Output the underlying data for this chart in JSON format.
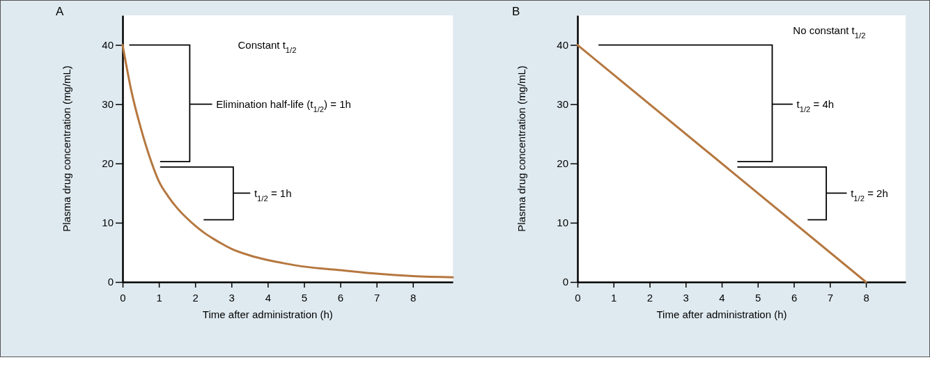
{
  "chart_data": [
    {
      "type": "line",
      "title": "A",
      "xlabel": "Time after administration (h)",
      "ylabel": "Plasma drug concentration (mg/mL)",
      "x": [
        0,
        0.25,
        0.5,
        0.75,
        1,
        1.25,
        1.5,
        1.75,
        2,
        2.25,
        2.5,
        2.75,
        3,
        3.5,
        4,
        4.5,
        5,
        6,
        7,
        8,
        9.1
      ],
      "series": [
        {
          "color": "#b5773f",
          "values": [
            40,
            32,
            26,
            21,
            17,
            14.5,
            12.5,
            10.9,
            9.5,
            8.3,
            7.3,
            6.4,
            5.6,
            4.5,
            3.7,
            3.1,
            2.6,
            2.0,
            1.4,
            1.0,
            0.8
          ]
        }
      ],
      "xlim": [
        0,
        9.1
      ],
      "ylim": [
        0,
        45
      ],
      "xticks": [
        0,
        1,
        2,
        3,
        4,
        5,
        6,
        7,
        8
      ],
      "yticks": [
        0,
        10,
        20,
        30,
        40
      ],
      "annotations": [
        "Constant t$_{1/2}$",
        "Elimination half-life (t$_{1/2}$) = 1h",
        "t$_{1/2}$ = 1h"
      ]
    },
    {
      "type": "line",
      "title": "B",
      "xlabel": "Time after administration (h)",
      "ylabel": "Plasma drug concentration (mg/mL)",
      "x": [
        0,
        8
      ],
      "series": [
        {
          "color": "#b5773f",
          "values": [
            40,
            0
          ]
        }
      ],
      "xlim": [
        0,
        9.1
      ],
      "ylim": [
        0,
        45
      ],
      "xticks": [
        0,
        1,
        2,
        3,
        4,
        5,
        6,
        7,
        8
      ],
      "yticks": [
        0,
        10,
        20,
        30,
        40
      ],
      "annotations": [
        "No constant t$_{1/2}$",
        "t$_{1/2}$ = 4h",
        "t$_{1/2}$ = 2h"
      ]
    }
  ]
}
